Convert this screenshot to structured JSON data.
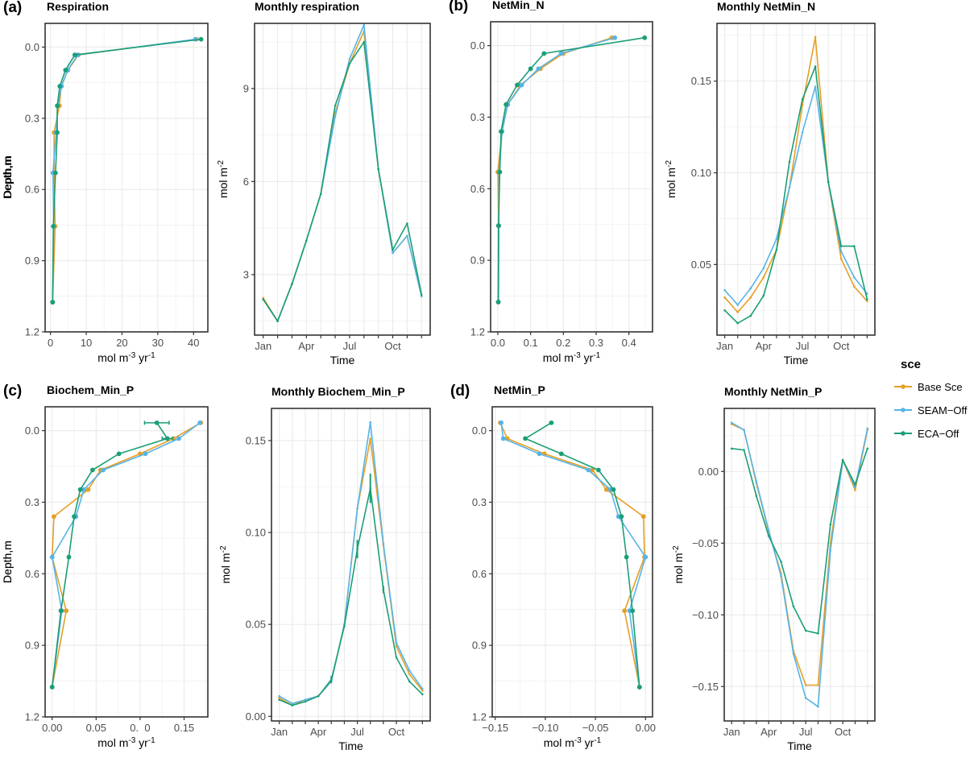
{
  "legend": {
    "title": "sce",
    "items": [
      {
        "name": "Base Sce",
        "color": "#E69F25"
      },
      {
        "name": "SEAM−Off",
        "color": "#56B4E9"
      },
      {
        "name": "ECA−Off",
        "color": "#1A9E77"
      }
    ]
  },
  "chart_data": [
    {
      "id": "a-profile",
      "type": "line",
      "letter": "(a)",
      "title": "Respiration",
      "xlabel": "mol m-3 yr-1",
      "ylabel": "Depth,m",
      "orientation": "depth-profile",
      "xlim": [
        -1.5,
        44
      ],
      "ylim": [
        1.2,
        -0.1
      ],
      "x_ticks": [
        0,
        10,
        20,
        30,
        40
      ],
      "x_tick_labels": [
        "0",
        "10",
        "20",
        "30",
        "40"
      ],
      "y_ticks": [
        0.0,
        0.3,
        0.6,
        0.9,
        1.2
      ],
      "y_tick_labels": [
        "0.0",
        "0.3",
        "0.6",
        "0.9",
        "1.2"
      ],
      "depth": [
        -0.033,
        0.033,
        0.097,
        0.165,
        0.247,
        0.36,
        0.53,
        0.755,
        1.075
      ],
      "series": [
        {
          "name": "Base Sce",
          "values": [
            40.8,
            7.8,
            4.9,
            3.0,
            2.5,
            1.0,
            1.0,
            1.3,
            0.6
          ],
          "errors": null
        },
        {
          "name": "SEAM-Off",
          "values": [
            40.5,
            7.6,
            4.8,
            3.1,
            2.0,
            1.6,
            0.7,
            0.9,
            0.6
          ],
          "errors": null
        },
        {
          "name": "ECA-Off",
          "values": [
            42.1,
            6.8,
            4.2,
            2.6,
            1.9,
            1.9,
            1.4,
            0.8,
            0.6
          ],
          "errors": null
        }
      ]
    },
    {
      "id": "a-monthly",
      "type": "line",
      "title": "Monthly respiration",
      "xlabel": "Time",
      "ylabel": "mol m-2",
      "orientation": "time-series",
      "xlim": [
        0.4,
        12.6
      ],
      "ylim": [
        1.05,
        11.1
      ],
      "x_ticks": [
        1,
        2,
        3,
        4,
        5,
        6,
        7,
        8,
        9,
        10,
        11,
        12
      ],
      "x_tick_labels": [
        "Jan",
        "",
        "",
        "Apr",
        "",
        "",
        "Jul",
        "",
        "",
        "Oct",
        "",
        ""
      ],
      "y_ticks": [
        3,
        6,
        9
      ],
      "y_tick_labels": [
        "3",
        "6",
        "9"
      ],
      "y_minor": [
        1.5,
        4.5,
        7.5,
        10.5
      ],
      "series": [
        {
          "name": "Base Sce",
          "values": [
            2.25,
            1.5,
            2.7,
            4.1,
            5.6,
            8.2,
            9.8,
            10.85,
            6.4,
            3.7,
            4.25,
            2.3
          ],
          "errors": null
        },
        {
          "name": "SEAM-Off",
          "values": [
            2.2,
            1.5,
            2.7,
            4.1,
            5.6,
            8.1,
            9.95,
            11.05,
            6.4,
            3.7,
            4.25,
            2.3
          ],
          "errors": null
        },
        {
          "name": "ECA-Off",
          "values": [
            2.2,
            1.5,
            2.7,
            4.1,
            5.6,
            8.45,
            9.8,
            10.5,
            6.4,
            3.8,
            4.65,
            2.35
          ],
          "errors": null
        }
      ]
    },
    {
      "id": "b-profile",
      "type": "line",
      "letter": "(b)",
      "title": "NetMin_N",
      "xlabel": "mol m-3 yr-1",
      "ylabel": "Depth,m",
      "orientation": "depth-profile",
      "xlim": [
        -0.022,
        0.472
      ],
      "ylim": [
        1.2,
        -0.1
      ],
      "x_ticks": [
        0.0,
        0.1,
        0.2,
        0.3,
        0.4
      ],
      "x_tick_labels": [
        "0.0",
        "0.1",
        "0.2",
        "0.3",
        "0.4"
      ],
      "y_ticks": [
        0.0,
        0.3,
        0.6,
        0.9,
        1.2
      ],
      "y_tick_labels": [
        "0.0",
        "0.3",
        "0.6",
        "0.9",
        "1.2"
      ],
      "depth": [
        -0.033,
        0.033,
        0.097,
        0.165,
        0.247,
        0.36,
        0.53,
        0.755,
        1.075
      ],
      "series": [
        {
          "name": "Base Sce",
          "values": [
            0.348,
            0.2,
            0.13,
            0.07,
            0.03,
            0.013,
            0.0,
            0.003,
            0.002
          ],
          "errors": null
        },
        {
          "name": "SEAM-Off",
          "values": [
            0.357,
            0.193,
            0.124,
            0.073,
            0.03,
            0.013,
            0.004,
            0.003,
            0.002
          ],
          "errors": null
        },
        {
          "name": "ECA-Off",
          "values": [
            0.448,
            0.141,
            0.1,
            0.059,
            0.025,
            0.01,
            0.006,
            0.002,
            0.001
          ],
          "errors": null
        }
      ]
    },
    {
      "id": "b-monthly",
      "type": "line",
      "title": "Monthly NetMin_N",
      "xlabel": "Time",
      "ylabel": "mol m-2",
      "orientation": "time-series",
      "xlim": [
        0.4,
        12.6
      ],
      "ylim": [
        0.0115,
        0.1815
      ],
      "x_ticks": [
        1,
        2,
        3,
        4,
        5,
        6,
        7,
        8,
        9,
        10,
        11,
        12
      ],
      "x_tick_labels": [
        "Jan",
        "",
        "",
        "Apr",
        "",
        "",
        "Jul",
        "",
        "",
        "Oct",
        "",
        ""
      ],
      "y_ticks": [
        0.05,
        0.1,
        0.15
      ],
      "y_tick_labels": [
        "0.05",
        "0.10",
        "0.15"
      ],
      "y_minor": [
        0.025,
        0.075,
        0.125,
        0.175
      ],
      "series": [
        {
          "name": "Base Sce",
          "values": [
            0.032,
            0.024,
            0.032,
            0.043,
            0.058,
            0.092,
            0.137,
            0.174,
            0.095,
            0.053,
            0.038,
            0.03
          ],
          "errors": null
        },
        {
          "name": "SEAM-Off",
          "values": [
            0.036,
            0.028,
            0.037,
            0.048,
            0.064,
            0.092,
            0.122,
            0.147,
            0.095,
            0.057,
            0.043,
            0.034
          ],
          "errors": null
        },
        {
          "name": "ECA-Off",
          "values": [
            0.025,
            0.018,
            0.022,
            0.033,
            0.058,
            0.106,
            0.14,
            0.158,
            0.095,
            0.06,
            0.06,
            0.031
          ],
          "errors": null
        }
      ]
    },
    {
      "id": "c-profile",
      "type": "line",
      "letter": "(c)",
      "title": "Biochem_Min_P",
      "xlabel": "mol m-3 yr-1",
      "ylabel": "Depth,m",
      "orientation": "depth-profile",
      "xlim": [
        -0.008,
        0.177
      ],
      "ylim": [
        1.2,
        -0.1
      ],
      "x_ticks": [
        0.0,
        0.05,
        0.1,
        0.15
      ],
      "x_tick_labels": [
        "0.00",
        "0.05",
        "0.  0",
        "0.15"
      ],
      "y_ticks": [
        0.0,
        0.3,
        0.6,
        0.9,
        1.2
      ],
      "y_tick_labels": [
        "0.0",
        "0.3",
        "0.6",
        "0.9",
        "1.2"
      ],
      "depth": [
        -0.033,
        0.033,
        0.097,
        0.165,
        0.247,
        0.36,
        0.53,
        0.755,
        1.075
      ],
      "series": [
        {
          "name": "Base Sce",
          "values": [
            0.169,
            0.138,
            0.1,
            0.055,
            0.041,
            0.002,
            0.0,
            0.016,
            0.0
          ],
          "errors": null
        },
        {
          "name": "SEAM-Off",
          "values": [
            0.168,
            0.144,
            0.106,
            0.058,
            0.036,
            0.027,
            0.0,
            0.011,
            0.0
          ],
          "errors": null
        },
        {
          "name": "ECA-Off",
          "values": [
            0.119,
            0.131,
            0.076,
            0.046,
            0.032,
            0.025,
            0.019,
            0.01,
            0.0
          ],
          "errors": [
            0.014,
            0.006,
            null,
            null,
            null,
            null,
            null,
            null,
            null
          ]
        }
      ]
    },
    {
      "id": "c-monthly",
      "type": "line",
      "title": "Monthly Biochem_Min_P",
      "xlabel": "Time",
      "ylabel": "mol m-2",
      "orientation": "time-series",
      "xlim": [
        0.4,
        12.6
      ],
      "ylim": [
        -0.0025,
        0.1675
      ],
      "x_ticks": [
        1,
        2,
        3,
        4,
        5,
        6,
        7,
        8,
        9,
        10,
        11,
        12
      ],
      "x_tick_labels": [
        "Jan",
        "",
        "",
        "Apr",
        "",
        "",
        "Jul",
        "",
        "",
        "Oct",
        "",
        ""
      ],
      "y_ticks": [
        0.0,
        0.05,
        0.1,
        0.15
      ],
      "y_tick_labels": [
        "0.00",
        "0.05",
        "0.10",
        "0.15"
      ],
      "y_minor": [
        0.025,
        0.075,
        0.125
      ],
      "series": [
        {
          "name": "Base Sce",
          "values": [
            0.01,
            0.006,
            0.009,
            0.011,
            0.019,
            0.05,
            0.113,
            0.151,
            0.093,
            0.038,
            0.023,
            0.014
          ],
          "errors": null
        },
        {
          "name": "SEAM-Off",
          "values": [
            0.011,
            0.007,
            0.009,
            0.011,
            0.019,
            0.05,
            0.113,
            0.16,
            0.094,
            0.04,
            0.025,
            0.015
          ],
          "errors": null
        },
        {
          "name": "ECA-Off",
          "values": [
            0.009,
            0.006,
            0.008,
            0.011,
            0.02,
            0.049,
            0.091,
            0.124,
            0.069,
            0.032,
            0.019,
            0.012
          ],
          "errors": [
            null,
            null,
            null,
            null,
            0.002,
            null,
            0.005,
            0.008,
            0.002,
            null,
            null,
            null
          ]
        }
      ]
    },
    {
      "id": "d-profile",
      "type": "line",
      "letter": "(d)",
      "title": "NetMin_P",
      "xlabel": "mol m-3 yr-1",
      "ylabel": "Depth,m",
      "orientation": "depth-profile",
      "xlim": [
        -0.153,
        0.007
      ],
      "ylim": [
        1.2,
        -0.1
      ],
      "x_ticks": [
        -0.15,
        -0.1,
        -0.05,
        0.0
      ],
      "x_tick_labels": [
        "−0.15",
        "−0.10",
        "−0.05",
        "0.00"
      ],
      "y_ticks": [
        0.0,
        0.3,
        0.6,
        0.9,
        1.2
      ],
      "y_tick_labels": [
        "0.0",
        "0.3",
        "0.6",
        "0.9",
        "1.2"
      ],
      "depth": [
        -0.033,
        0.033,
        0.097,
        0.165,
        0.247,
        0.36,
        0.53,
        0.755,
        1.075
      ],
      "series": [
        {
          "name": "Base Sce",
          "values": [
            -0.145,
            -0.138,
            -0.101,
            -0.053,
            -0.039,
            -0.002,
            -0.001,
            -0.021,
            -0.006
          ],
          "errors": null
        },
        {
          "name": "SEAM-Off",
          "values": [
            -0.144,
            -0.142,
            -0.106,
            -0.057,
            -0.035,
            -0.027,
            0.0,
            -0.016,
            -0.006
          ],
          "errors": null
        },
        {
          "name": "ECA-Off",
          "values": [
            -0.094,
            -0.12,
            -0.084,
            -0.047,
            -0.032,
            -0.024,
            -0.019,
            -0.013,
            -0.006
          ],
          "errors": null
        }
      ]
    },
    {
      "id": "d-monthly",
      "type": "line",
      "title": "Monthly NetMin_P",
      "xlabel": "Time",
      "ylabel": "mol m-2",
      "orientation": "time-series",
      "xlim": [
        0.4,
        12.6
      ],
      "ylim": [
        -0.174,
        0.044
      ],
      "x_ticks": [
        1,
        2,
        3,
        4,
        5,
        6,
        7,
        8,
        9,
        10,
        11,
        12
      ],
      "x_tick_labels": [
        "Jan",
        "",
        "",
        "Apr",
        "",
        "",
        "Jul",
        "",
        "",
        "Oct",
        "",
        ""
      ],
      "y_ticks": [
        -0.15,
        -0.1,
        -0.05,
        0.0
      ],
      "y_tick_labels": [
        "−0.15",
        "−0.10",
        "−0.05",
        "0.00"
      ],
      "y_minor": [
        -0.125,
        -0.075,
        -0.025,
        0.025
      ],
      "series": [
        {
          "name": "Base Sce",
          "values": [
            0.033,
            0.029,
            -0.008,
            -0.042,
            -0.071,
            -0.125,
            -0.149,
            -0.149,
            -0.05,
            0.008,
            -0.013,
            0.029
          ],
          "errors": null
        },
        {
          "name": "SEAM-Off",
          "values": [
            0.034,
            0.029,
            -0.007,
            -0.041,
            -0.073,
            -0.127,
            -0.158,
            -0.164,
            -0.055,
            0.008,
            -0.011,
            0.03
          ],
          "errors": null
        },
        {
          "name": "ECA-Off",
          "values": [
            0.016,
            0.015,
            -0.017,
            -0.045,
            -0.063,
            -0.094,
            -0.111,
            -0.113,
            -0.037,
            0.008,
            -0.009,
            0.016
          ],
          "errors": null
        }
      ]
    }
  ]
}
